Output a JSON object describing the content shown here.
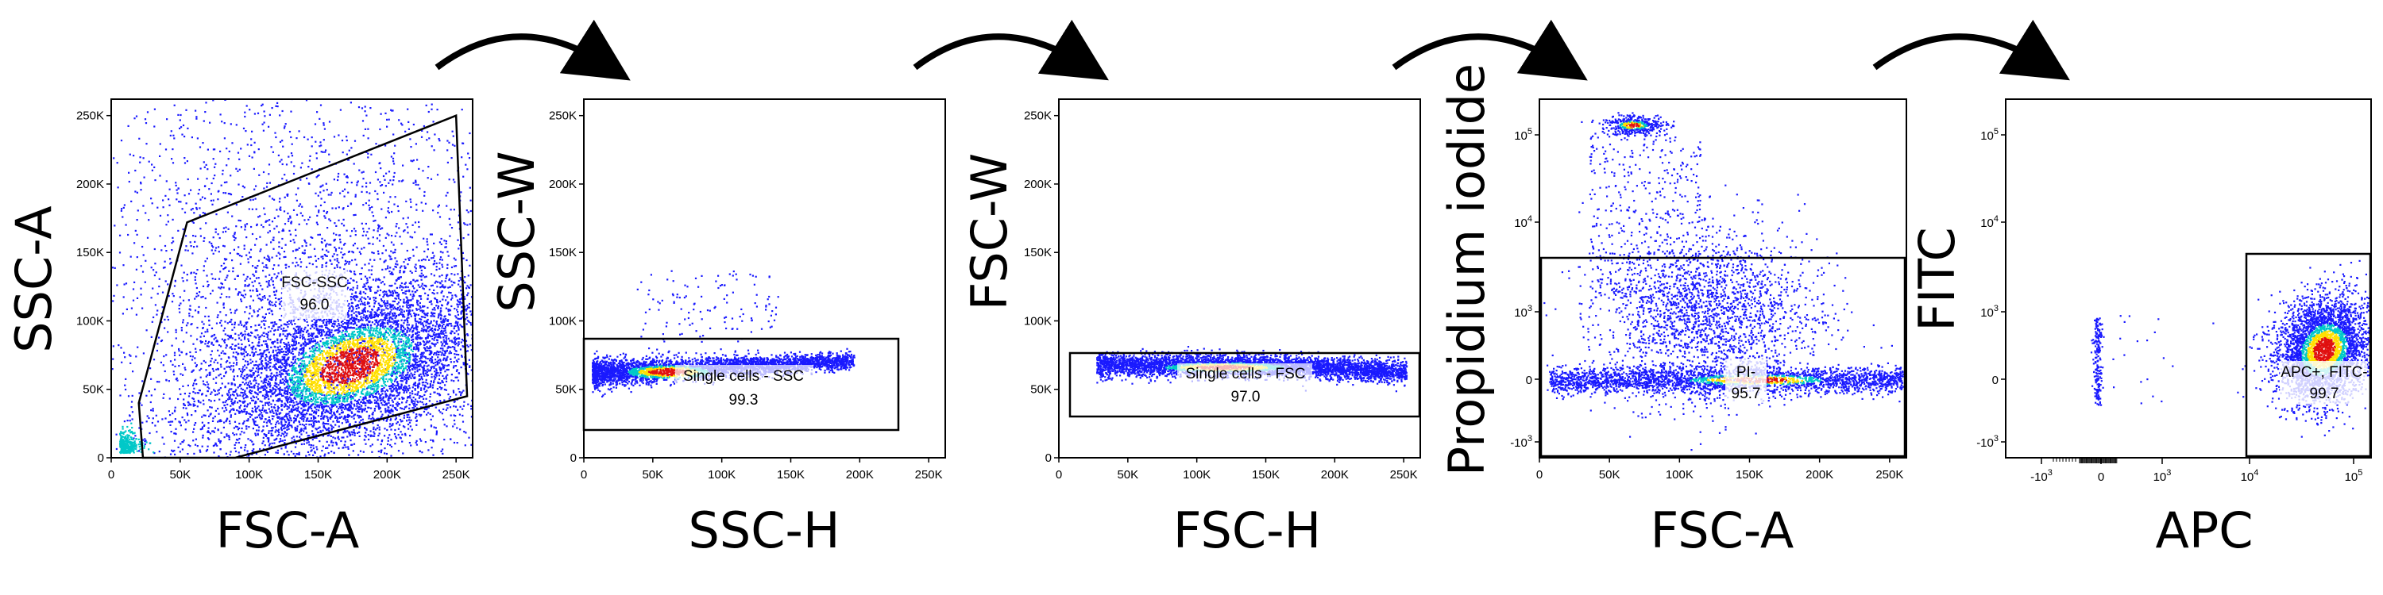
{
  "figure": {
    "panels": [
      {
        "id": "p1",
        "xlabel": "FSC-A",
        "ylabel": "SSC-A",
        "xticks": [
          "0",
          "50K",
          "100K",
          "150K",
          "200K",
          "250K"
        ],
        "yticks": [
          "0",
          "50K",
          "100K",
          "150K",
          "200K",
          "250K"
        ],
        "gate": {
          "name": "FSC-SSC",
          "value": "96.0"
        }
      },
      {
        "id": "p2",
        "xlabel": "SSC-H",
        "ylabel": "SSC-W",
        "xticks": [
          "0",
          "50K",
          "100K",
          "150K",
          "200K",
          "250K"
        ],
        "yticks": [
          "0",
          "50K",
          "100K",
          "150K",
          "200K",
          "250K"
        ],
        "gate": {
          "name": "Single cells - SSC",
          "value": "99.3"
        }
      },
      {
        "id": "p3",
        "xlabel": "FSC-H",
        "ylabel": "FSC-W",
        "xticks": [
          "0",
          "50K",
          "100K",
          "150K",
          "200K",
          "250K"
        ],
        "yticks": [
          "0",
          "50K",
          "100K",
          "150K",
          "200K",
          "250K"
        ],
        "gate": {
          "name": "Single cells - FSC",
          "value": "97.0"
        }
      },
      {
        "id": "p4",
        "xlabel": "FSC-A",
        "ylabel": "Propidium iodide",
        "xticks": [
          "0",
          "50K",
          "100K",
          "150K",
          "200K",
          "250K"
        ],
        "yticks_log": [
          {
            "base": "10",
            "exp": "5"
          },
          {
            "base": "10",
            "exp": "4"
          },
          {
            "base": "10",
            "exp": "3"
          },
          {
            "base": "0",
            "exp": ""
          },
          {
            "base": "-10",
            "exp": "3"
          }
        ],
        "gate": {
          "name": "PI-",
          "value": "95.7"
        }
      },
      {
        "id": "p5",
        "xlabel": "APC",
        "ylabel": "FITC",
        "xticks_log": [
          {
            "base": "-10",
            "exp": "3"
          },
          {
            "base": "0",
            "exp": ""
          },
          {
            "base": "10",
            "exp": "3"
          },
          {
            "base": "10",
            "exp": "4"
          },
          {
            "base": "10",
            "exp": "5"
          }
        ],
        "yticks_log": [
          {
            "base": "10",
            "exp": "5"
          },
          {
            "base": "10",
            "exp": "4"
          },
          {
            "base": "10",
            "exp": "3"
          },
          {
            "base": "0",
            "exp": ""
          },
          {
            "base": "-10",
            "exp": "3"
          }
        ],
        "gate": {
          "name": "APC+, FITC-",
          "value": "99.7"
        }
      }
    ],
    "colors": {
      "density_low": "#1a1aff",
      "density_mid": "#00c8c8",
      "density_high": "#ffe000",
      "density_peak": "#e01010"
    }
  },
  "chart_data": {
    "type": "scatter",
    "panels": [
      {
        "x_axis": "FSC-A",
        "y_axis": "SSC-A",
        "xlim": [
          0,
          262000
        ],
        "ylim": [
          0,
          262000
        ],
        "gate": "FSC-SSC",
        "gate_percent": 96.0,
        "gate_polygon": [
          [
            23000,
            0
          ],
          [
            20000,
            40000
          ],
          [
            55000,
            172000
          ],
          [
            250000,
            250000
          ],
          [
            258000,
            45000
          ],
          [
            90000,
            0
          ]
        ],
        "population_center": [
          160000,
          65000
        ]
      },
      {
        "x_axis": "SSC-H",
        "y_axis": "SSC-W",
        "xlim": [
          0,
          262000
        ],
        "ylim": [
          0,
          262000
        ],
        "gate": "Single cells - SSC",
        "gate_percent": 99.3,
        "gate_rect": {
          "x": [
            0,
            228000
          ],
          "y": [
            20000,
            86000
          ]
        },
        "population_center": [
          50000,
          68000
        ]
      },
      {
        "x_axis": "FSC-H",
        "y_axis": "FSC-W",
        "xlim": [
          0,
          262000
        ],
        "ylim": [
          0,
          262000
        ],
        "gate": "Single cells - FSC",
        "gate_percent": 97.0,
        "gate_rect": {
          "x": [
            5000,
            260000
          ],
          "y": [
            35000,
            80000
          ]
        },
        "population_center": [
          120000,
          72000
        ]
      },
      {
        "x_axis": "FSC-A",
        "y_axis": "Propidium iodide",
        "xlim": [
          0,
          262000
        ],
        "y_scale": "biexponential",
        "gate": "PI-",
        "gate_percent": 95.7,
        "gate_upper_bound": 5000,
        "populations": [
          "PI-negative cells near 0",
          "PI-positive debris near 10^5 at FSC-A ~50K"
        ]
      },
      {
        "x_axis": "APC",
        "y_axis": "FITC",
        "x_scale": "biexponential",
        "y_scale": "biexponential",
        "gate": "APC+, FITC-",
        "gate_percent": 99.7,
        "gate_lower_x": 8000,
        "gate_upper_y": 5000,
        "populations": [
          "APC+ FITC- cells at APC ~10^4.5",
          "few events near APC 0"
        ]
      }
    ]
  }
}
